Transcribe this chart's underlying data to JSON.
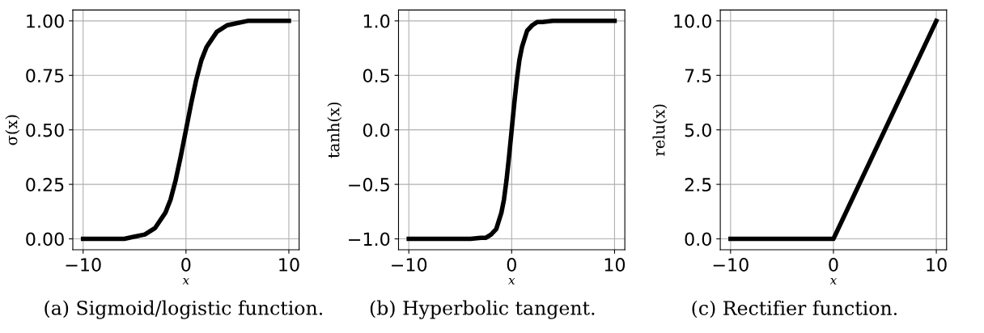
{
  "chart_data": [
    {
      "type": "line",
      "xlabel": "x",
      "ylabel": "σ(x)",
      "annotations": [
        "(a) Sigmoid/logistic function."
      ],
      "x": [
        -10,
        -8,
        -6,
        -5,
        -4,
        -3,
        -2,
        -1.5,
        -1,
        -0.5,
        0,
        0.5,
        1,
        1.5,
        2,
        3,
        4,
        5,
        6,
        8,
        10
      ],
      "series": [
        {
          "color": "#000000",
          "values": [
            0.0,
            0.0,
            0.0,
            0.01,
            0.02,
            0.05,
            0.12,
            0.18,
            0.27,
            0.38,
            0.5,
            0.62,
            0.73,
            0.82,
            0.88,
            0.95,
            0.98,
            0.99,
            1.0,
            1.0,
            1.0
          ]
        }
      ],
      "xlim": [
        -11,
        11
      ],
      "ylim": [
        -0.05,
        1.05
      ],
      "xticks": [
        -10,
        0,
        10
      ],
      "yticks": [
        {
          "value": 0,
          "label": "0.00"
        },
        0.25,
        {
          "value": 0.5,
          "label": "0.50"
        },
        0.75,
        {
          "value": 1,
          "label": "1.00"
        }
      ],
      "grid": true,
      "legend": false
    },
    {
      "type": "line",
      "xlabel": "x",
      "ylabel": "tanh(x)",
      "annotations": [
        "(b) Hyperbolic tangent."
      ],
      "x": [
        -10,
        -6,
        -4,
        -3,
        -2.5,
        -2,
        -1.5,
        -1,
        -0.75,
        -0.5,
        -0.25,
        0,
        0.25,
        0.5,
        0.75,
        1,
        1.5,
        2,
        2.5,
        3,
        4,
        6,
        10
      ],
      "series": [
        {
          "color": "#000000",
          "values": [
            -1.0,
            -1.0,
            -1.0,
            -0.99,
            -0.99,
            -0.96,
            -0.91,
            -0.76,
            -0.64,
            -0.46,
            -0.24,
            0.0,
            0.24,
            0.46,
            0.64,
            0.76,
            0.91,
            0.96,
            0.99,
            0.99,
            1.0,
            1.0,
            1.0
          ]
        }
      ],
      "xlim": [
        -11,
        11
      ],
      "ylim": [
        -1.1,
        1.1
      ],
      "xticks": [
        -10,
        0,
        10
      ],
      "yticks": [
        {
          "value": -1,
          "label": "−1.0"
        },
        {
          "value": -0.5,
          "label": "−0.5"
        },
        {
          "value": 0,
          "label": "0.0"
        },
        0.5,
        {
          "value": 1,
          "label": "1.0"
        }
      ],
      "grid": true,
      "legend": false
    },
    {
      "type": "line",
      "xlabel": "x",
      "ylabel": "relu(x)",
      "annotations": [
        "(c) Rectifier function."
      ],
      "x": [
        -10,
        0,
        10
      ],
      "series": [
        {
          "color": "#000000",
          "values": [
            0,
            0,
            10
          ]
        }
      ],
      "xlim": [
        -11,
        11
      ],
      "ylim": [
        -0.5,
        10.5
      ],
      "xticks": [
        -10,
        0,
        10
      ],
      "yticks": [
        {
          "value": 0,
          "label": "0.0"
        },
        2.5,
        {
          "value": 5,
          "label": "5.0"
        },
        7.5,
        {
          "value": 10,
          "label": "10.0"
        }
      ],
      "grid": true,
      "legend": false
    }
  ]
}
